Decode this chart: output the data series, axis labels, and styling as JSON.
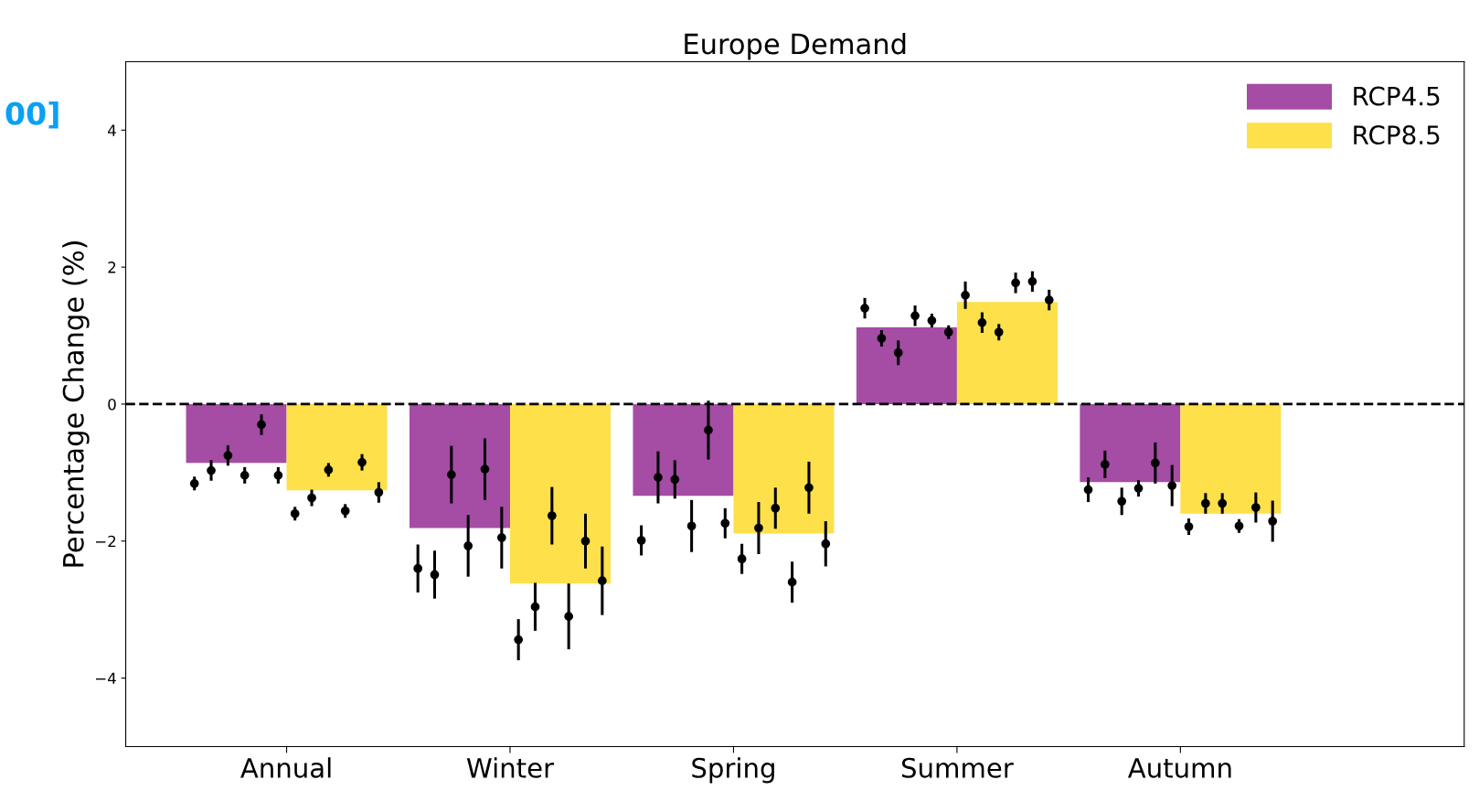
{
  "chart_data": {
    "type": "bar",
    "title": "Europe Demand",
    "ylabel": "Percentage Change (%)",
    "categories": [
      "Annual",
      "Winter",
      "Spring",
      "Summer",
      "Autumn"
    ],
    "ylim": [
      -5,
      5
    ],
    "yticks": [
      {
        "value": -4,
        "label": "−4"
      },
      {
        "value": -2,
        "label": "−2"
      },
      0,
      2,
      4
    ],
    "grid": false,
    "legend": "top right",
    "ref_lines": [
      {
        "axis": "y",
        "value": 0,
        "color": "#000000",
        "line_style": "dashed"
      }
    ],
    "annotations": [
      "00]"
    ],
    "series": [
      {
        "name": "RCP4.5",
        "color": "#a54ca5",
        "values": [
          -0.86,
          -1.81,
          -1.34,
          1.12,
          -1.14
        ]
      },
      {
        "name": "RCP8.5",
        "color": "#fde04a",
        "values": [
          -1.26,
          -2.62,
          -1.89,
          1.49,
          -1.6
        ]
      },
      {
        "type": "scatter",
        "color": "#000000",
        "marker": "circle",
        "values": [
          -1.16,
          -2.4,
          -1.99,
          1.4,
          -1.25
        ],
        "errors": [
          0.1,
          0.35,
          0.22,
          0.15,
          0.18
        ]
      },
      {
        "type": "scatter",
        "color": "#000000",
        "marker": "circle",
        "values": [
          -0.97,
          -2.49,
          -1.07,
          0.96,
          -0.88
        ],
        "errors": [
          0.15,
          0.35,
          0.38,
          0.12,
          0.2
        ]
      },
      {
        "type": "scatter",
        "color": "#000000",
        "marker": "circle",
        "values": [
          -0.75,
          -1.03,
          -1.1,
          0.75,
          -1.42
        ],
        "errors": [
          0.15,
          0.42,
          0.28,
          0.18,
          0.2
        ]
      },
      {
        "type": "scatter",
        "color": "#000000",
        "marker": "circle",
        "values": [
          -1.04,
          -2.07,
          -1.78,
          1.29,
          -1.23
        ],
        "errors": [
          0.12,
          0.45,
          0.38,
          0.15,
          0.12
        ]
      },
      {
        "type": "scatter",
        "color": "#000000",
        "marker": "circle",
        "values": [
          -0.3,
          -0.95,
          -0.38,
          1.22,
          -0.86
        ],
        "errors": [
          0.15,
          0.45,
          0.43,
          0.1,
          0.3
        ]
      },
      {
        "type": "scatter",
        "color": "#000000",
        "marker": "circle",
        "values": [
          -1.04,
          -1.95,
          -1.74,
          1.05,
          -1.19
        ],
        "errors": [
          0.12,
          0.45,
          0.22,
          0.1,
          0.3
        ]
      },
      {
        "type": "scatter",
        "color": "#000000",
        "marker": "circle",
        "values": [
          -1.6,
          -3.44,
          -2.26,
          1.59,
          -1.79
        ],
        "errors": [
          0.1,
          0.3,
          0.22,
          0.2,
          0.12
        ]
      },
      {
        "type": "scatter",
        "color": "#000000",
        "marker": "circle",
        "values": [
          -1.37,
          -2.96,
          -1.81,
          1.19,
          -1.45
        ],
        "errors": [
          0.12,
          0.35,
          0.38,
          0.15,
          0.15
        ]
      },
      {
        "type": "scatter",
        "color": "#000000",
        "marker": "circle",
        "values": [
          -0.96,
          -1.63,
          -1.52,
          1.05,
          -1.45
        ],
        "errors": [
          0.1,
          0.42,
          0.3,
          0.12,
          0.15
        ]
      },
      {
        "type": "scatter",
        "color": "#000000",
        "marker": "circle",
        "values": [
          -1.56,
          -3.1,
          -2.6,
          1.77,
          -1.78
        ],
        "errors": [
          0.1,
          0.48,
          0.3,
          0.15,
          0.1
        ]
      },
      {
        "type": "scatter",
        "color": "#000000",
        "marker": "circle",
        "values": [
          -0.85,
          -2.0,
          -1.22,
          1.79,
          -1.51
        ],
        "errors": [
          0.12,
          0.4,
          0.38,
          0.15,
          0.22
        ]
      },
      {
        "type": "scatter",
        "color": "#000000",
        "marker": "circle",
        "values": [
          -1.29,
          -2.58,
          -2.04,
          1.52,
          -1.71
        ],
        "errors": [
          0.15,
          0.5,
          0.33,
          0.15,
          0.3
        ]
      }
    ]
  }
}
